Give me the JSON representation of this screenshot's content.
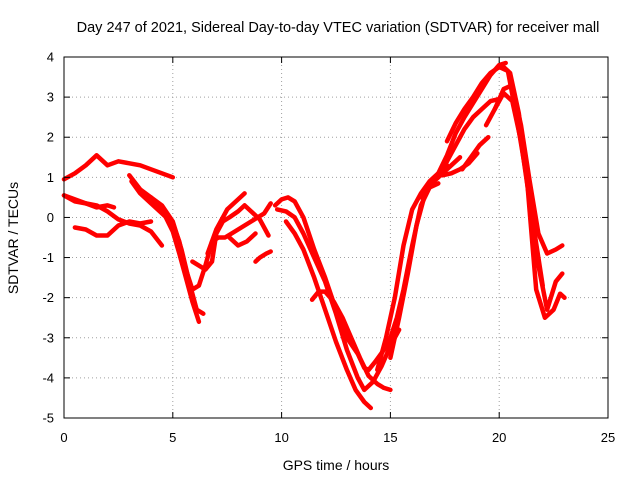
{
  "chart_data": {
    "type": "line",
    "title": "Day 247 of 2021, Sidereal Day-to-day VTEC variation (SDTVAR) for receiver mall",
    "xlabel": "GPS time / hours",
    "ylabel": "SDTVAR / TECUs",
    "xlim": [
      0,
      25
    ],
    "ylim": [
      -5,
      4
    ],
    "xticks": [
      0,
      5,
      10,
      15,
      20,
      25
    ],
    "yticks": [
      4,
      3,
      2,
      1,
      0,
      -1,
      -2,
      -3,
      -4,
      -5
    ],
    "grid": true,
    "color": "#ff0000",
    "series": [
      {
        "x": [
          0.0,
          0.5,
          1.0,
          1.5,
          2.0,
          2.5,
          3.0,
          3.5,
          4.0,
          4.5,
          5.0
        ],
        "y": [
          0.95,
          1.1,
          1.3,
          1.55,
          1.3,
          1.4,
          1.35,
          1.3,
          1.2,
          1.1,
          1.0
        ]
      },
      {
        "x": [
          0.0,
          0.5,
          1.0,
          1.5,
          2.0,
          2.3
        ],
        "y": [
          0.55,
          0.45,
          0.35,
          0.25,
          0.3,
          0.25
        ]
      },
      {
        "x": [
          0.0,
          0.5,
          1.0,
          1.5,
          2.0,
          2.5,
          3.0,
          3.5,
          4.0,
          4.5
        ],
        "y": [
          0.55,
          0.4,
          0.35,
          0.3,
          0.15,
          -0.05,
          -0.15,
          -0.2,
          -0.35,
          -0.7
        ]
      },
      {
        "x": [
          0.5,
          1.0,
          1.5,
          2.0,
          2.5,
          3.0,
          3.5,
          4.0
        ],
        "y": [
          -0.25,
          -0.3,
          -0.45,
          -0.45,
          -0.2,
          -0.1,
          -0.15,
          -0.1
        ]
      },
      {
        "x": [
          3.1,
          3.5,
          4.0,
          4.5,
          5.0,
          5.3,
          5.6,
          5.9,
          6.2,
          6.5,
          6.8,
          7.1,
          7.4,
          7.7,
          8.0,
          8.3,
          8.6,
          8.9,
          9.2,
          9.5
        ],
        "y": [
          0.9,
          0.6,
          0.35,
          0.1,
          -0.15,
          -0.6,
          -1.3,
          -1.8,
          -1.7,
          -1.2,
          -0.6,
          -0.5,
          -0.5,
          -0.4,
          -0.3,
          -0.2,
          -0.1,
          0.0,
          0.1,
          0.35
        ]
      },
      {
        "x": [
          3.0,
          3.5,
          4.0,
          4.5,
          5.0,
          5.3,
          5.6,
          5.9,
          6.2
        ],
        "y": [
          1.05,
          0.7,
          0.5,
          0.2,
          -0.35,
          -0.9,
          -1.5,
          -2.1,
          -2.6
        ]
      },
      {
        "x": [
          4.0,
          4.5,
          5.0,
          5.4,
          5.8,
          6.1,
          6.4
        ],
        "y": [
          0.5,
          0.3,
          -0.1,
          -0.8,
          -1.7,
          -2.3,
          -2.4
        ]
      },
      {
        "x": [
          5.9,
          6.2,
          6.5,
          6.8,
          7.0,
          7.3,
          7.6,
          8.0,
          8.3,
          8.6,
          9.0,
          9.4
        ],
        "y": [
          -1.1,
          -1.2,
          -1.3,
          -1.1,
          -0.4,
          -0.1,
          0.0,
          0.15,
          0.3,
          0.15,
          -0.05,
          -0.45
        ]
      },
      {
        "x": [
          6.6,
          7.0,
          7.5,
          8.0,
          8.3
        ],
        "y": [
          -0.9,
          -0.3,
          0.2,
          0.45,
          0.6
        ]
      },
      {
        "x": [
          7.6,
          8.0,
          8.4,
          8.8
        ],
        "y": [
          -0.5,
          -0.7,
          -0.6,
          -0.4
        ]
      },
      {
        "x": [
          8.8,
          9.0,
          9.3,
          9.5
        ],
        "y": [
          -1.1,
          -1.0,
          -0.9,
          -0.85
        ]
      },
      {
        "x": [
          9.7,
          10.0,
          10.3,
          10.6,
          11.0,
          11.5,
          12.0,
          12.5,
          13.0,
          13.5,
          13.8,
          14.0,
          14.3,
          14.7,
          15.0,
          15.3,
          15.6,
          16.0,
          16.4,
          16.8,
          17.2
        ],
        "y": [
          0.3,
          0.45,
          0.5,
          0.4,
          0.0,
          -0.8,
          -1.5,
          -2.3,
          -3.0,
          -3.4,
          -3.75,
          -3.8,
          -3.6,
          -3.3,
          -3.0,
          -2.5,
          -1.8,
          -0.7,
          0.3,
          0.75,
          0.85
        ]
      },
      {
        "x": [
          9.8,
          10.2,
          10.6,
          11.0,
          11.5,
          12.0,
          12.5,
          13.0,
          13.5,
          13.8,
          14.2,
          14.6,
          15.0,
          15.4
        ],
        "y": [
          0.2,
          0.15,
          0.0,
          -0.4,
          -1.0,
          -1.6,
          -2.4,
          -3.3,
          -4.0,
          -4.3,
          -4.1,
          -3.7,
          -3.2,
          -2.8
        ]
      },
      {
        "x": [
          10.2,
          10.6,
          11.0,
          11.5,
          12.0,
          12.5,
          13.0,
          13.4,
          13.8,
          14.1
        ],
        "y": [
          -0.1,
          -0.4,
          -0.8,
          -1.5,
          -2.3,
          -3.1,
          -3.8,
          -4.3,
          -4.6,
          -4.75
        ]
      },
      {
        "x": [
          11.4,
          11.7,
          12.0,
          12.4,
          12.8,
          13.2,
          13.6,
          14.0,
          14.4,
          14.7,
          15.0
        ],
        "y": [
          -2.05,
          -1.85,
          -1.85,
          -2.1,
          -2.5,
          -3.0,
          -3.5,
          -3.95,
          -4.15,
          -4.25,
          -4.3
        ]
      },
      {
        "x": [
          14.4,
          14.8,
          15.2,
          15.6,
          16.0,
          16.4,
          16.8,
          17.2,
          17.6
        ],
        "y": [
          -3.8,
          -3.0,
          -2.0,
          -0.7,
          0.2,
          0.6,
          0.9,
          1.1,
          1.3
        ]
      },
      {
        "x": [
          15.0,
          15.4,
          15.8,
          16.2,
          16.6,
          17.0,
          17.4,
          17.8,
          18.2
        ],
        "y": [
          -3.5,
          -2.5,
          -1.4,
          -0.2,
          0.6,
          0.9,
          1.1,
          1.3,
          1.5
        ]
      },
      {
        "x": [
          16.4,
          16.8,
          17.2,
          17.6,
          18.0,
          18.4,
          18.8,
          19.2,
          19.6,
          20.0
        ],
        "y": [
          0.5,
          0.85,
          1.0,
          1.4,
          1.8,
          2.2,
          2.5,
          2.7,
          2.9,
          2.95
        ]
      },
      {
        "x": [
          17.2,
          17.6,
          18.0,
          18.4,
          18.8,
          19.2,
          19.6,
          20.0,
          20.3
        ],
        "y": [
          1.1,
          1.55,
          2.1,
          2.5,
          2.85,
          3.2,
          3.55,
          3.8,
          3.85
        ]
      },
      {
        "x": [
          17.6,
          18.0,
          18.4,
          18.8,
          19.2,
          19.6,
          20.0,
          20.4,
          20.8,
          21.2,
          21.6,
          22.0
        ],
        "y": [
          1.9,
          2.35,
          2.7,
          3.0,
          3.35,
          3.6,
          3.75,
          3.65,
          2.5,
          1.2,
          -0.3,
          -1.7
        ]
      },
      {
        "x": [
          17.4,
          17.8,
          18.2,
          18.6,
          19.0
        ],
        "y": [
          1.05,
          1.1,
          1.2,
          1.35,
          1.6
        ]
      },
      {
        "x": [
          18.3,
          18.7,
          19.1,
          19.5
        ],
        "y": [
          1.2,
          1.5,
          1.8,
          2.0
        ]
      },
      {
        "x": [
          19.4,
          19.8,
          20.2,
          20.6,
          21.0,
          21.4,
          21.8,
          22.2,
          22.6,
          22.9
        ],
        "y": [
          2.3,
          2.7,
          3.2,
          3.3,
          2.3,
          0.9,
          -0.4,
          -0.9,
          -0.8,
          -0.7
        ]
      },
      {
        "x": [
          19.8,
          20.2,
          20.6,
          21.0,
          21.4,
          21.8,
          22.2,
          22.6,
          22.9
        ],
        "y": [
          2.7,
          3.1,
          2.9,
          1.9,
          0.4,
          -1.2,
          -2.3,
          -1.6,
          -1.4
        ]
      },
      {
        "x": [
          20.1,
          20.5,
          20.9,
          21.3,
          21.7,
          22.1,
          22.5,
          22.8,
          23.0
        ],
        "y": [
          3.8,
          3.6,
          2.6,
          0.8,
          -1.8,
          -2.5,
          -2.3,
          -1.9,
          -2.0
        ]
      }
    ]
  }
}
